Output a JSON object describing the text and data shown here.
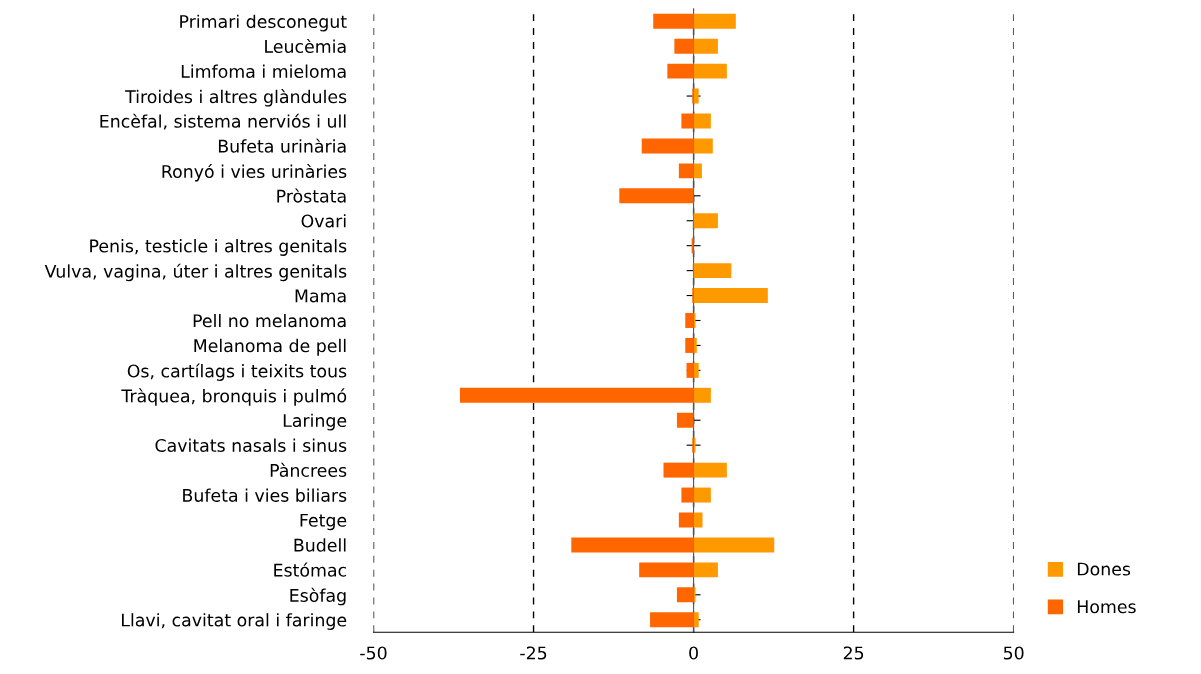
{
  "chart_data": {
    "type": "bar",
    "orientation": "horizontal",
    "categories": [
      "Primari desconegut",
      "Leucèmia",
      "Limfoma i mieloma",
      "Tiroides i altres glàndules",
      "Encèfal, sistema nerviós i ull",
      "Bufeta urinària",
      "Ronyó i vies urinàries",
      "Pròstata",
      "Ovari",
      "Penis, testicle i altres genitals",
      "Vulva, vagina, úter i altres genitals",
      "Mama",
      "Pell no melanoma",
      "Melanoma de pell",
      "Os, cartílags i teixits tous",
      "Tràquea, bronquis i pulmó",
      "Laringe",
      "Cavitats nasals i sinus",
      "Pàncrees",
      "Bufeta i vies biliars",
      "Fetge",
      "Budell",
      "Estómac",
      "Esòfag",
      "Llavi, cavitat oral i faringe"
    ],
    "series": [
      {
        "name": "Dones",
        "color": "#ff9900",
        "values": [
          6.6,
          3.8,
          5.2,
          0.8,
          2.7,
          3.0,
          1.3,
          null,
          3.8,
          null,
          5.9,
          11.6,
          0.3,
          0.5,
          0.8,
          2.7,
          null,
          0.3,
          5.2,
          2.7,
          1.4,
          12.6,
          3.8,
          0.3,
          0.8
        ]
      },
      {
        "name": "Homes",
        "color": "#ff6600",
        "values": [
          -6.3,
          -3.0,
          -4.1,
          -0.2,
          -1.9,
          -8.1,
          -2.3,
          -11.6,
          null,
          -0.3,
          null,
          -0.2,
          -1.3,
          -1.3,
          -1.1,
          -36.5,
          -2.6,
          -0.2,
          -4.7,
          -1.9,
          -2.3,
          -19.1,
          -8.5,
          -2.6,
          -6.8
        ]
      }
    ],
    "stacked": true,
    "xlim": [
      -50,
      50
    ],
    "xticks": [
      -50,
      -25,
      0,
      25,
      50
    ],
    "grid": "x",
    "legend": "bottom right"
  }
}
